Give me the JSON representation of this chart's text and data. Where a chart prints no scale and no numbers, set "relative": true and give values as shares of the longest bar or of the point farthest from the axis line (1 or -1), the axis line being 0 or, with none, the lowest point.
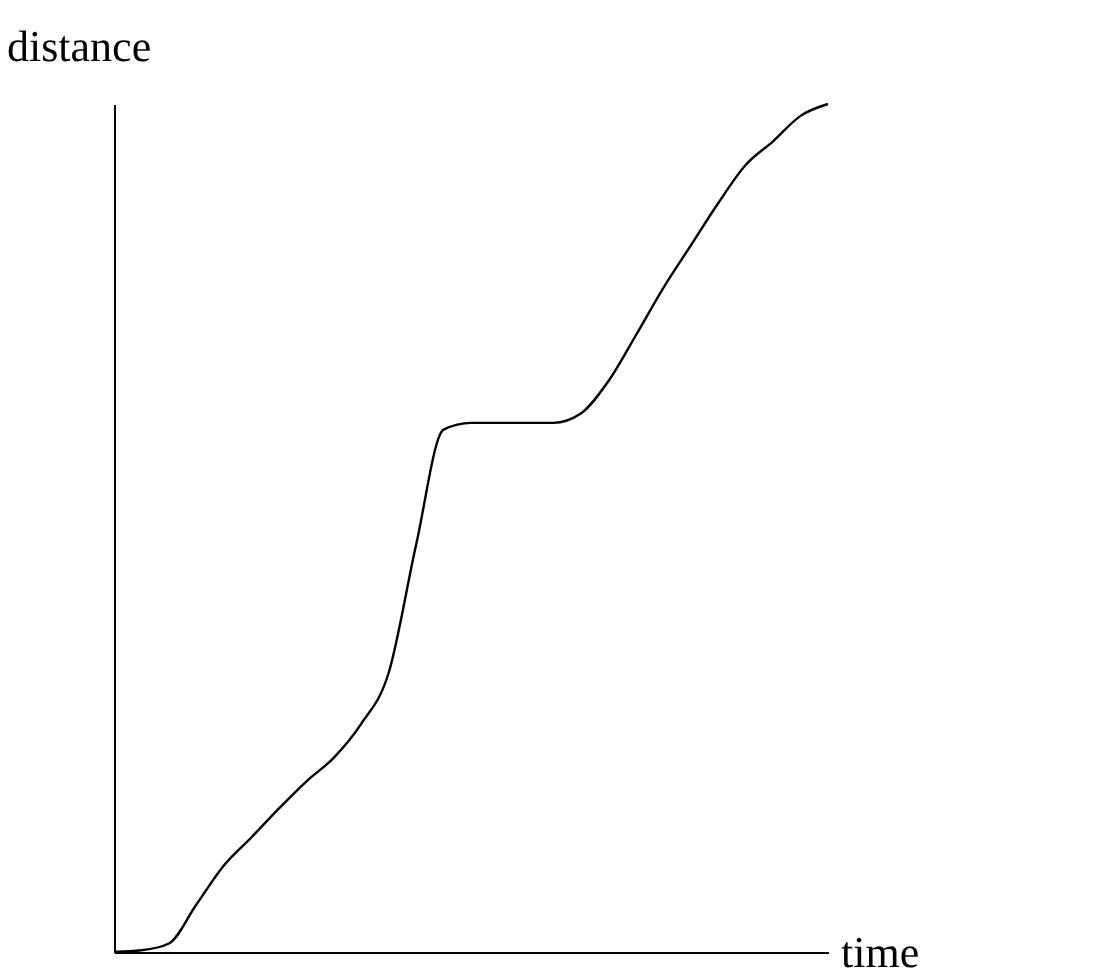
{
  "chart_data": {
    "type": "line",
    "relative": true,
    "xlabel": "time",
    "ylabel": "distance",
    "line_style": "solid",
    "categories": [
      null,
      null,
      null,
      null,
      null,
      null,
      null,
      null,
      null,
      null,
      null,
      null,
      null,
      null,
      null,
      null,
      null,
      null,
      null,
      null,
      null,
      null,
      null,
      null,
      null,
      null,
      null
    ],
    "series": [
      {
        "color": "#000000",
        "values": [
          0,
          0.002,
          0.01,
          0.056,
          0.102,
          0.135,
          0.169,
          0.201,
          0.229,
          0.269,
          0.329,
          0.48,
          0.616,
          0.624,
          0.624,
          0.624,
          0.624,
          0.635,
          0.673,
          0.727,
          0.783,
          0.833,
          0.883,
          0.928,
          0.956,
          0.986,
          1
        ]
      }
    ]
  }
}
